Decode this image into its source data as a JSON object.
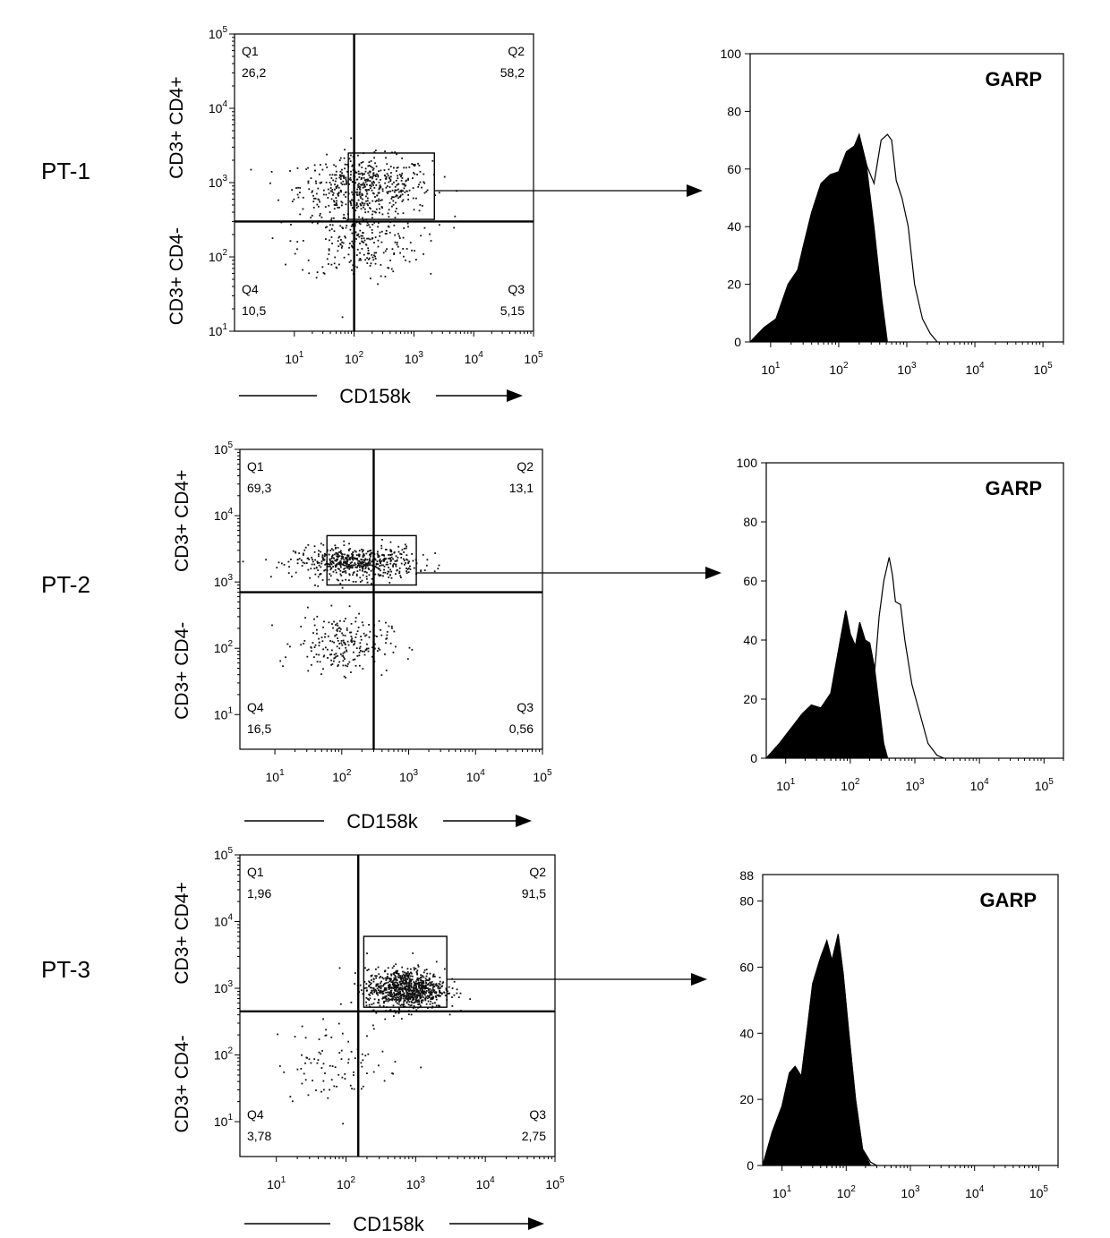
{
  "chart_data": [
    {
      "type": "scatter",
      "panel": "PT-1 dot plot",
      "row_label": "PT-1",
      "xlabel": "CD158k",
      "ylabel_top": "CD3+ CD4+",
      "ylabel_bottom": "CD3+ CD4-",
      "scale": "log",
      "xlim": [
        1,
        100000
      ],
      "ylim": [
        10,
        100000
      ],
      "x_ticks": [
        10,
        100,
        1000,
        10000,
        100000
      ],
      "y_ticks": [
        10,
        100,
        1000,
        10000,
        100000
      ],
      "quadrant_split": {
        "x": 100,
        "y": 300
      },
      "gate": {
        "x": [
          80,
          2200
        ],
        "y": [
          320,
          2500
        ]
      },
      "quadrants": [
        {
          "name": "Q1",
          "value": "26,2"
        },
        {
          "name": "Q2",
          "value": "58,2"
        },
        {
          "name": "Q4",
          "value": "10,5"
        },
        {
          "name": "Q3",
          "value": "5,15"
        }
      ],
      "clusters": [
        {
          "x_center": 150,
          "y_center": 900,
          "x_spread": 0.55,
          "y_spread": 0.2,
          "n": 520
        },
        {
          "x_center": 120,
          "y_center": 160,
          "x_spread": 0.5,
          "y_spread": 0.25,
          "n": 240
        }
      ]
    },
    {
      "type": "area",
      "panel": "PT-1 histogram",
      "marker": "GARP",
      "ylim": [
        0,
        100
      ],
      "y_ticks": [
        0,
        20,
        40,
        60,
        80,
        100
      ],
      "x_ticks": [
        10,
        100,
        1000,
        10000,
        100000
      ],
      "xlim": [
        5,
        200000
      ],
      "series": [
        {
          "fill": "#000000",
          "x": [
            5,
            8,
            12,
            18,
            25,
            30,
            40,
            55,
            75,
            100,
            130,
            170,
            200,
            260,
            330,
            430,
            520
          ],
          "y": [
            0,
            5,
            8,
            20,
            25,
            33,
            45,
            55,
            58,
            59,
            66,
            68,
            72,
            60,
            40,
            15,
            0
          ]
        },
        {
          "fill": "none",
          "x": [
            5,
            8,
            12,
            18,
            25,
            30,
            40,
            55,
            75,
            100,
            130,
            170,
            200,
            260,
            330,
            420,
            520,
            600,
            700,
            850,
            1050,
            1300,
            1700,
            2200,
            2800
          ],
          "y": [
            0,
            5,
            8,
            20,
            25,
            33,
            45,
            55,
            58,
            59,
            66,
            68,
            72,
            61,
            55,
            70,
            72,
            70,
            56,
            50,
            40,
            20,
            8,
            3,
            0
          ]
        }
      ]
    },
    {
      "type": "scatter",
      "panel": "PT-2 dot plot",
      "row_label": "PT-2",
      "xlabel": "CD158k",
      "ylabel_top": "CD3+ CD4+",
      "ylabel_bottom": "CD3+ CD4-",
      "scale": "log",
      "xlim": [
        3,
        100000
      ],
      "ylim": [
        3,
        100000
      ],
      "x_ticks": [
        10,
        100,
        1000,
        10000,
        100000
      ],
      "y_ticks": [
        10,
        100,
        1000,
        10000,
        100000
      ],
      "quadrant_split": {
        "x": 300,
        "y": 700
      },
      "gate": {
        "x": [
          60,
          1300
        ],
        "y": [
          900,
          5000
        ]
      },
      "quadrants": [
        {
          "name": "Q1",
          "value": "69,3"
        },
        {
          "name": "Q2",
          "value": "13,1"
        },
        {
          "name": "Q4",
          "value": "16,5"
        },
        {
          "name": "Q3",
          "value": "0,56"
        }
      ],
      "clusters": [
        {
          "x_center": 160,
          "y_center": 2000,
          "x_spread": 0.45,
          "y_spread": 0.12,
          "n": 560
        },
        {
          "x_center": 100,
          "y_center": 120,
          "x_spread": 0.35,
          "y_spread": 0.22,
          "n": 220
        }
      ]
    },
    {
      "type": "area",
      "panel": "PT-2 histogram",
      "marker": "GARP",
      "ylim": [
        0,
        100
      ],
      "y_ticks": [
        0,
        20,
        40,
        60,
        80,
        100
      ],
      "x_ticks": [
        10,
        100,
        1000,
        10000,
        100000
      ],
      "xlim": [
        5,
        200000
      ],
      "series": [
        {
          "fill": "#000000",
          "x": [
            5,
            8,
            12,
            18,
            25,
            35,
            50,
            70,
            85,
            100,
            120,
            140,
            170,
            200,
            240,
            280,
            330,
            380
          ],
          "y": [
            0,
            5,
            10,
            15,
            18,
            17,
            22,
            40,
            50,
            42,
            38,
            46,
            40,
            39,
            30,
            18,
            5,
            0
          ]
        },
        {
          "fill": "none",
          "x": [
            5,
            8,
            12,
            18,
            25,
            35,
            50,
            70,
            85,
            100,
            120,
            140,
            170,
            200,
            240,
            280,
            330,
            400,
            450,
            500,
            600,
            700,
            900,
            1200,
            1600,
            2200,
            2800
          ],
          "y": [
            0,
            5,
            10,
            15,
            18,
            17,
            22,
            40,
            50,
            42,
            38,
            46,
            40,
            39,
            30,
            48,
            60,
            68,
            62,
            53,
            52,
            40,
            25,
            15,
            5,
            1,
            0
          ]
        }
      ]
    },
    {
      "type": "scatter",
      "panel": "PT-3 dot plot",
      "row_label": "PT-3",
      "xlabel": "CD158k",
      "ylabel_top": "CD3+ CD4+",
      "ylabel_bottom": "CD3+ CD4-",
      "scale": "log",
      "xlim": [
        3,
        100000
      ],
      "ylim": [
        3,
        100000
      ],
      "x_ticks": [
        10,
        100,
        1000,
        10000,
        100000
      ],
      "y_ticks": [
        10,
        100,
        1000,
        10000,
        100000
      ],
      "quadrant_split": {
        "x": 150,
        "y": 450
      },
      "gate": {
        "x": [
          180,
          2800
        ],
        "y": [
          520,
          6000
        ]
      },
      "quadrants": [
        {
          "name": "Q1",
          "value": "1,96"
        },
        {
          "name": "Q2",
          "value": "91,5"
        },
        {
          "name": "Q4",
          "value": "3,78"
        },
        {
          "name": "Q3",
          "value": "2,75"
        }
      ],
      "clusters": [
        {
          "x_center": 700,
          "y_center": 1000,
          "x_spread": 0.28,
          "y_spread": 0.15,
          "n": 900
        },
        {
          "x_center": 80,
          "y_center": 80,
          "x_spread": 0.45,
          "y_spread": 0.3,
          "n": 90
        }
      ]
    },
    {
      "type": "area",
      "panel": "PT-3 histogram",
      "marker": "GARP",
      "ylim": [
        0,
        88
      ],
      "y_ticks": [
        0,
        20,
        40,
        60,
        80
      ],
      "y_tick_labels": [
        "0",
        "20",
        "40",
        "60",
        "80",
        "88"
      ],
      "x_ticks": [
        10,
        100,
        1000,
        10000,
        100000
      ],
      "xlim": [
        5,
        200000
      ],
      "series": [
        {
          "fill": "#000000",
          "x": [
            5,
            7,
            10,
            13,
            16,
            20,
            25,
            30,
            40,
            50,
            60,
            75,
            90,
            110,
            140,
            180,
            240
          ],
          "y": [
            0,
            10,
            18,
            28,
            30,
            27,
            42,
            55,
            63,
            68,
            62,
            70,
            58,
            40,
            20,
            5,
            0
          ]
        },
        {
          "fill": "none",
          "x": [
            5,
            7,
            10,
            13,
            16,
            20,
            25,
            30,
            40,
            50,
            60,
            75,
            90,
            110,
            140,
            180,
            240,
            300
          ],
          "y": [
            0,
            10,
            18,
            28,
            30,
            27,
            42,
            55,
            63,
            68,
            62,
            70,
            58,
            40,
            20,
            5,
            1,
            0
          ]
        }
      ]
    }
  ]
}
